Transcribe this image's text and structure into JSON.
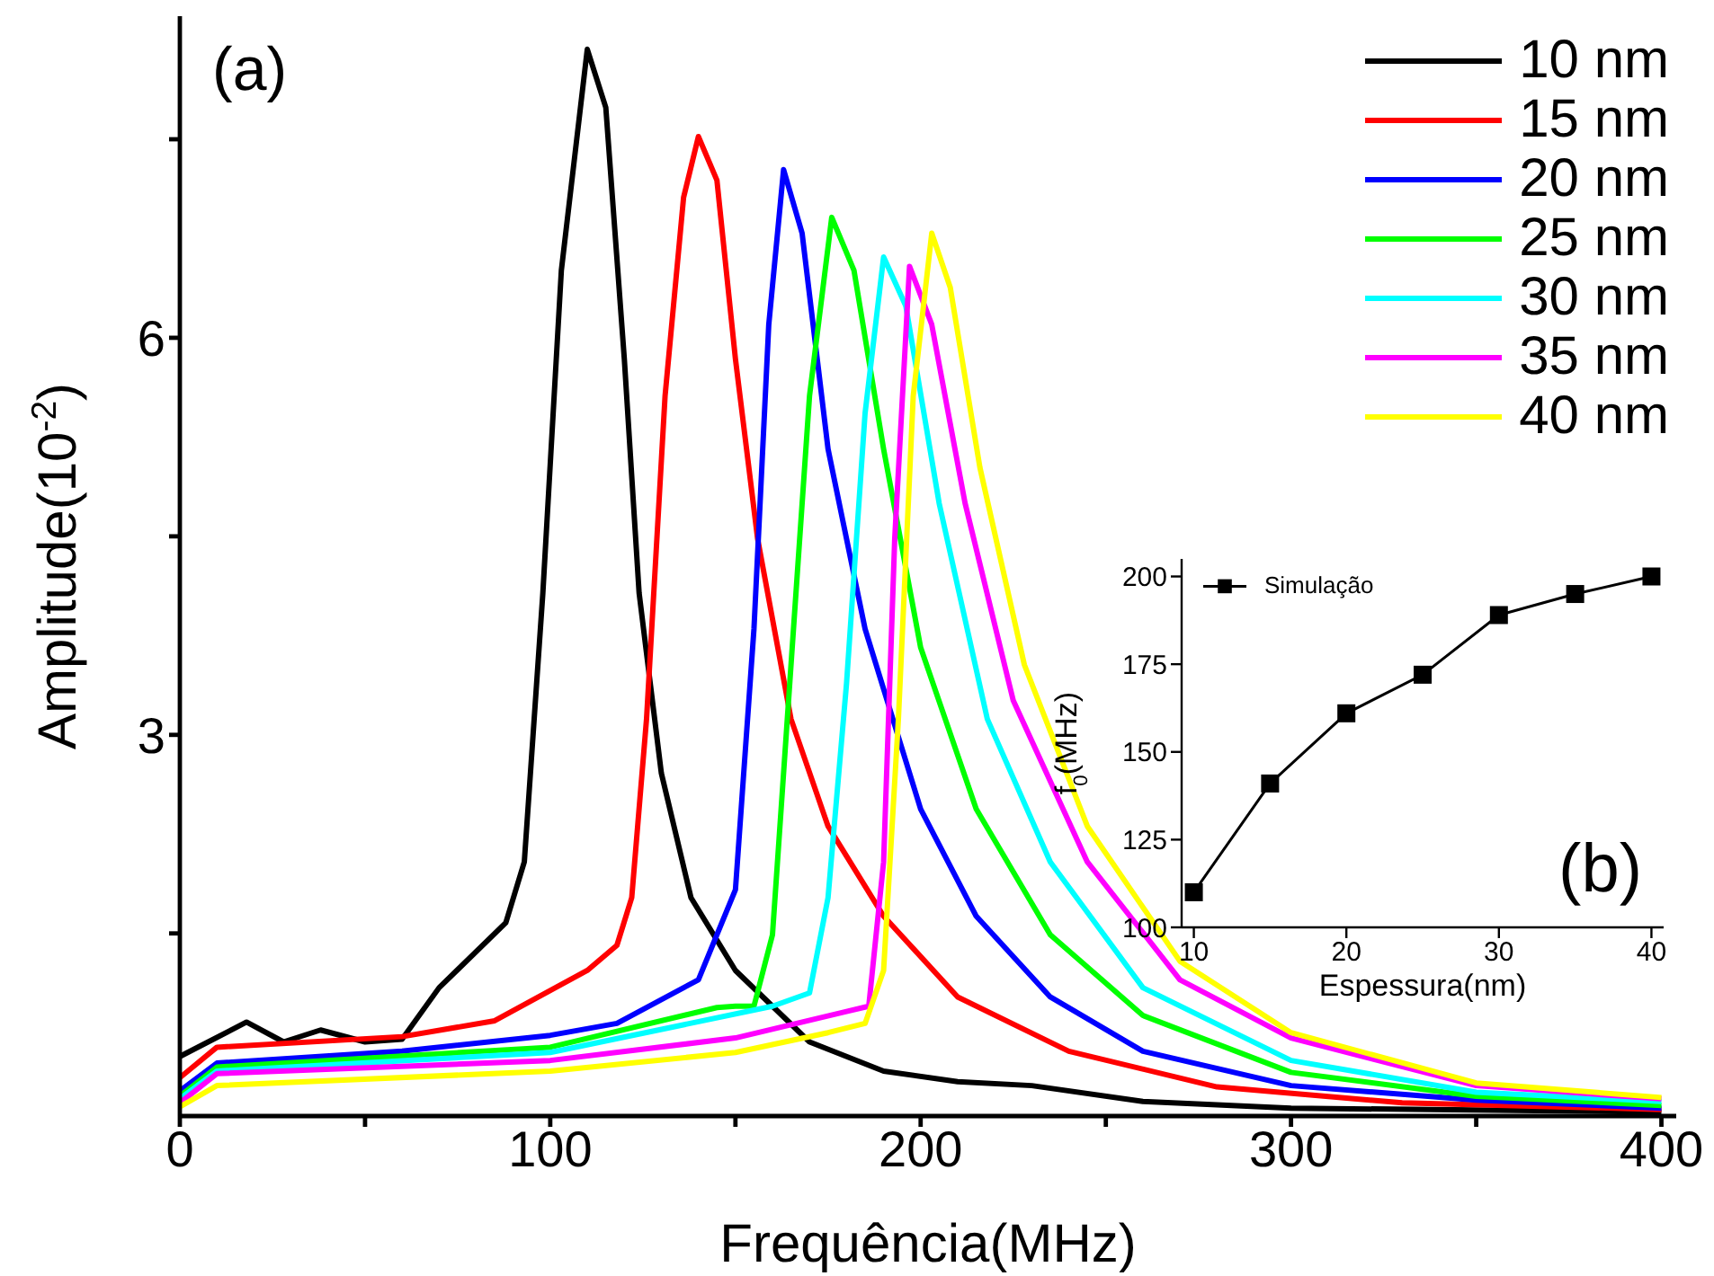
{
  "chart_data": [
    {
      "type": "line",
      "xlabel": "Frequência(MHz)",
      "ylabel": "Amplitude(10$^{-2}$)",
      "annotations": [
        "(a)"
      ],
      "xlim": [
        0,
        404
      ],
      "xticks": [
        0,
        {
          "value": 50,
          "label": null
        },
        100,
        {
          "value": 150,
          "label": null
        },
        200,
        {
          "value": 250,
          "label": null
        },
        300,
        {
          "value": 350,
          "label": null
        },
        400
      ],
      "ylim": [
        0.12,
        8.43
      ],
      "yticks": [
        {
          "value": 1.5,
          "label": null
        },
        3,
        {
          "value": 4.5,
          "label": null
        },
        6,
        {
          "value": 7.5,
          "label": null
        }
      ],
      "legend": "top right",
      "line_style": "solid",
      "series": [
        {
          "name": "10 nm",
          "color": "#000000",
          "x": [
            0,
            18,
            28,
            38,
            50,
            60,
            70,
            88,
            93,
            98,
            103,
            110,
            115,
            120,
            124,
            130,
            138,
            150,
            170,
            190,
            210,
            230,
            260,
            300,
            400
          ],
          "values": [
            0.57,
            0.83,
            0.68,
            0.77,
            0.68,
            0.7,
            1.09,
            1.58,
            2.04,
            4.07,
            6.51,
            8.18,
            7.74,
            5.84,
            4.07,
            2.71,
            1.77,
            1.22,
            0.68,
            0.46,
            0.38,
            0.35,
            0.23,
            0.18,
            0.15
          ]
        },
        {
          "name": "15 nm",
          "color": "#ff0000",
          "x": [
            0,
            10,
            60,
            85,
            110,
            118,
            122,
            126,
            131,
            136,
            140,
            145,
            150,
            156,
            165,
            175,
            190,
            210,
            240,
            280,
            330,
            400
          ],
          "values": [
            0.41,
            0.64,
            0.72,
            0.84,
            1.22,
            1.41,
            1.77,
            3.12,
            5.56,
            7.06,
            7.52,
            7.19,
            5.84,
            4.48,
            3.12,
            2.31,
            1.63,
            1.02,
            0.61,
            0.34,
            0.22,
            0.17
          ]
        },
        {
          "name": "20 nm",
          "color": "#0000ff",
          "x": [
            0,
            10,
            60,
            100,
            118,
            140,
            150,
            155,
            159,
            163,
            168,
            175,
            185,
            200,
            215,
            235,
            260,
            300,
            350,
            400
          ],
          "values": [
            0.31,
            0.52,
            0.61,
            0.73,
            0.82,
            1.15,
            1.83,
            3.8,
            6.1,
            7.27,
            6.79,
            5.16,
            3.8,
            2.44,
            1.63,
            1.02,
            0.61,
            0.35,
            0.24,
            0.18
          ]
        },
        {
          "name": "25 nm",
          "color": "#00ff00",
          "x": [
            0,
            10,
            100,
            145,
            150,
            155,
            160,
            164,
            170,
            176,
            182,
            190,
            200,
            215,
            235,
            260,
            300,
            350,
            400
          ],
          "values": [
            0.27,
            0.49,
            0.64,
            0.94,
            0.95,
            0.95,
            1.49,
            3.12,
            5.56,
            6.91,
            6.51,
            5.16,
            3.66,
            2.44,
            1.49,
            0.88,
            0.45,
            0.27,
            0.2
          ]
        },
        {
          "name": "30 nm",
          "color": "#00ffff",
          "x": [
            0,
            10,
            100,
            160,
            170,
            175,
            180,
            185,
            190,
            196,
            205,
            218,
            235,
            260,
            300,
            350,
            400
          ],
          "values": [
            0.25,
            0.46,
            0.6,
            0.95,
            1.05,
            1.77,
            3.39,
            5.43,
            6.61,
            6.24,
            4.75,
            3.12,
            2.04,
            1.09,
            0.54,
            0.3,
            0.23
          ]
        },
        {
          "name": "35 nm",
          "color": "#ff00ff",
          "x": [
            0,
            10,
            100,
            150,
            180,
            186,
            190,
            193,
            197,
            203,
            212,
            225,
            245,
            270,
            300,
            350,
            400
          ],
          "values": [
            0.22,
            0.44,
            0.54,
            0.71,
            0.91,
            0.95,
            2.04,
            4.48,
            6.54,
            6.1,
            4.75,
            3.26,
            2.04,
            1.15,
            0.71,
            0.35,
            0.25
          ]
        },
        {
          "name": "40 nm",
          "color": "#ffff00",
          "x": [
            0,
            10,
            100,
            150,
            175,
            185,
            190,
            194,
            198,
            203,
            208,
            216,
            228,
            245,
            270,
            300,
            350,
            400
          ],
          "values": [
            0.19,
            0.35,
            0.46,
            0.6,
            0.75,
            0.82,
            1.22,
            3.12,
            5.56,
            6.79,
            6.38,
            5.02,
            3.53,
            2.31,
            1.29,
            0.75,
            0.37,
            0.26
          ]
        }
      ]
    },
    {
      "type": "line",
      "xlabel": "Espessura(nm)",
      "ylabel": "f$_{0}$(MHz)",
      "annotations": [
        "(b)"
      ],
      "x": [
        10,
        15,
        20,
        25,
        30,
        35,
        40
      ],
      "xlim": [
        9.2,
        40.8
      ],
      "xticks": [
        10,
        20,
        30,
        40
      ],
      "ylim": [
        100,
        205
      ],
      "yticks": [
        100,
        125,
        150,
        175,
        200
      ],
      "legend": "top left",
      "marker": "square",
      "line_style": "solid",
      "series": [
        {
          "name": "Simulação",
          "color": "#000000",
          "values": [
            110,
            141,
            161,
            172,
            189,
            195,
            200
          ]
        }
      ]
    }
  ]
}
